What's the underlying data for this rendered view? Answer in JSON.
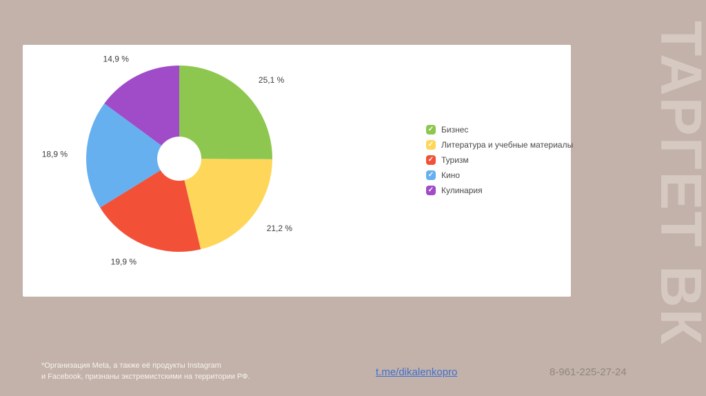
{
  "page": {
    "background": "#c3b2a9",
    "vertical_title": "ТАРГЕТ ВК"
  },
  "chart_data": {
    "type": "pie",
    "donut": true,
    "donut_hole_ratio": 0.24,
    "start_angle_deg": -90,
    "direction": "clockwise",
    "legend_position": "right",
    "slices": [
      {
        "label": "Бизнес",
        "value": 25.1,
        "display": "25,1 %",
        "color": "#8dc74f"
      },
      {
        "label": "Литература и учебные материалы",
        "value": 21.2,
        "display": "21,2 %",
        "color": "#fed75a"
      },
      {
        "label": "Туризм",
        "value": 19.9,
        "display": "19,9 %",
        "color": "#f25138"
      },
      {
        "label": "Кино",
        "value": 18.9,
        "display": "18,9 %",
        "color": "#66b0f0"
      },
      {
        "label": "Кулинария",
        "value": 14.9,
        "display": "14,9 %",
        "color": "#a04cc8"
      }
    ]
  },
  "footer": {
    "disclaimer_line1": "*Организация Meta, а также её продукты Instagram",
    "disclaimer_line2": "и Facebook, признаны экстремистскими на территории РФ.",
    "link": "t.me/dikalenkopro",
    "phone": "8-961-225-27-24"
  }
}
